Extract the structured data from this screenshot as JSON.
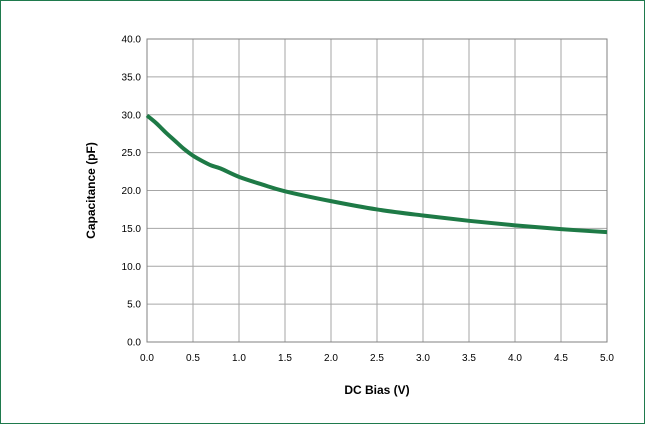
{
  "colors": {
    "frame": "#1f7a4d",
    "grid": "#a6a6a6",
    "axis": "#808080",
    "series": "#1e7a46"
  },
  "chart_data": {
    "type": "line",
    "title": "",
    "xlabel": "DC Bias (V)",
    "ylabel": "Capacitance (pF)",
    "xlim": [
      0,
      5
    ],
    "ylim": [
      0,
      40
    ],
    "grid": true,
    "x_ticks": [
      "0.0",
      "0.5",
      "1.0",
      "1.5",
      "2.0",
      "2.5",
      "3.0",
      "3.5",
      "4.0",
      "4.5",
      "5.0"
    ],
    "y_ticks": [
      "0.0",
      "5.0",
      "10.0",
      "15.0",
      "20.0",
      "25.0",
      "30.0",
      "35.0",
      "40.0"
    ],
    "series": [
      {
        "x": [
          0.0,
          0.1,
          0.2,
          0.3,
          0.4,
          0.5,
          0.6,
          0.7,
          0.8,
          1.0,
          1.25,
          1.5,
          2.0,
          2.5,
          3.0,
          3.5,
          4.0,
          4.5,
          5.0
        ],
        "y": [
          29.9,
          28.9,
          27.7,
          26.6,
          25.5,
          24.6,
          23.9,
          23.3,
          22.9,
          21.8,
          20.8,
          19.9,
          18.6,
          17.5,
          16.7,
          16.0,
          15.4,
          14.9,
          14.5
        ]
      }
    ]
  }
}
